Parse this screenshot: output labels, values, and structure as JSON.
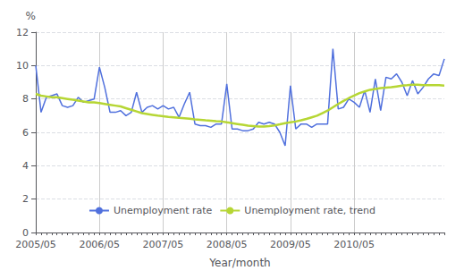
{
  "chart_data": {
    "type": "line",
    "xlabel": "Year/month",
    "ylabel": "%",
    "categories": [
      "2005/05",
      null,
      null,
      null,
      null,
      null,
      null,
      null,
      null,
      null,
      null,
      null,
      "2006/05",
      null,
      null,
      null,
      null,
      null,
      null,
      null,
      null,
      null,
      null,
      null,
      "2007/05",
      null,
      null,
      null,
      null,
      null,
      null,
      null,
      null,
      null,
      null,
      null,
      "2008/05",
      null,
      null,
      null,
      null,
      null,
      null,
      null,
      null,
      null,
      null,
      null,
      "2009/05",
      null,
      null,
      null,
      null,
      null,
      null,
      null,
      null,
      null,
      null,
      null,
      "2010/05",
      null,
      null,
      null,
      null,
      null,
      null,
      null,
      null,
      null,
      null,
      null,
      null,
      null,
      null,
      null,
      null,
      null
    ],
    "series": [
      {
        "name": "Unemployment rate",
        "values": [
          10.0,
          7.2,
          8.1,
          8.2,
          8.3,
          7.6,
          7.5,
          7.6,
          8.1,
          7.8,
          7.9,
          8.0,
          9.9,
          8.7,
          7.2,
          7.2,
          7.3,
          7.0,
          7.2,
          8.4,
          7.2,
          7.5,
          7.6,
          7.4,
          7.6,
          7.4,
          7.5,
          6.9,
          7.7,
          8.4,
          6.5,
          6.4,
          6.4,
          6.3,
          6.5,
          6.5,
          8.9,
          6.2,
          6.2,
          6.1,
          6.1,
          6.2,
          6.6,
          6.5,
          6.6,
          6.5,
          6.0,
          5.2,
          8.8,
          6.2,
          6.5,
          6.5,
          6.3,
          6.5,
          6.5,
          6.5,
          11.0,
          7.4,
          7.5,
          8.0,
          7.8,
          7.5,
          8.5,
          7.2,
          9.2,
          7.3,
          9.3,
          9.2,
          9.5,
          9.0,
          8.2,
          9.1,
          8.3,
          8.7,
          9.2,
          9.5,
          9.4,
          10.4
        ]
      },
      {
        "name": "Unemployment rate, trend",
        "values": [
          8.3,
          8.2,
          8.15,
          8.1,
          8.1,
          8.05,
          8.0,
          7.95,
          7.9,
          7.85,
          7.8,
          7.8,
          7.75,
          7.7,
          7.65,
          7.6,
          7.55,
          7.45,
          7.35,
          7.25,
          7.15,
          7.1,
          7.05,
          7.0,
          6.97,
          6.93,
          6.9,
          6.87,
          6.85,
          6.82,
          6.78,
          6.75,
          6.72,
          6.7,
          6.67,
          6.65,
          6.6,
          6.55,
          6.5,
          6.45,
          6.4,
          6.38,
          6.35,
          6.35,
          6.38,
          6.42,
          6.48,
          6.55,
          6.6,
          6.65,
          6.72,
          6.8,
          6.9,
          7.0,
          7.15,
          7.3,
          7.5,
          7.7,
          7.88,
          8.05,
          8.2,
          8.35,
          8.45,
          8.55,
          8.6,
          8.65,
          8.68,
          8.7,
          8.75,
          8.8,
          8.82,
          8.85,
          8.85,
          8.83,
          8.82,
          8.82,
          8.82,
          8.8
        ]
      }
    ],
    "ylim": [
      0,
      12
    ],
    "yticks": [
      0,
      2,
      4,
      6,
      8,
      10,
      12
    ],
    "grid": true,
    "legend": "bottom"
  }
}
